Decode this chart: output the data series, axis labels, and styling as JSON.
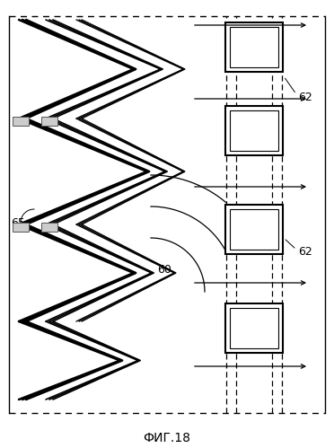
{
  "fig_width": 3.72,
  "fig_height": 4.99,
  "dpi": 100,
  "bg_color": "#ffffff",
  "line_color": "#000000",
  "label_65": "65",
  "label_60": "60",
  "label_62": "62",
  "label_fig": "ФИГ.18"
}
